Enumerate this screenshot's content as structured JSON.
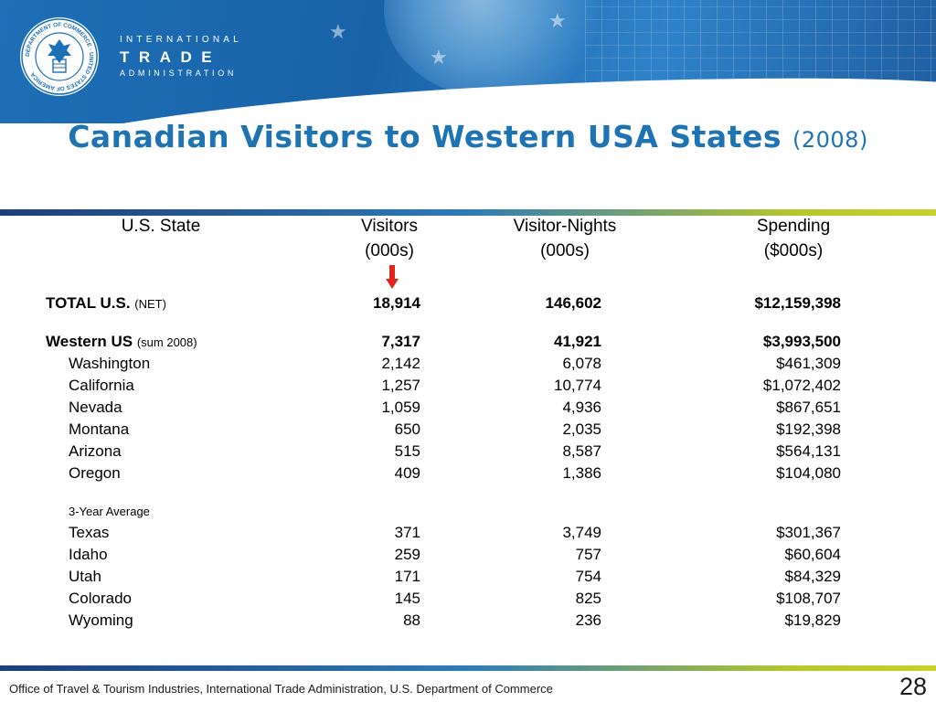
{
  "org": {
    "seal_text": "DEPARTMENT OF COMMERCE · UNITED STATES OF AMERICA",
    "line1": "INTERNATIONAL",
    "line2": "TRADE",
    "line3": "ADMINISTRATION"
  },
  "title": {
    "main": "Canadian Visitors to Western USA States",
    "year": "(2008)"
  },
  "columns": [
    {
      "line1": "U.S. State",
      "line2": ""
    },
    {
      "line1": "Visitors",
      "line2": "(000s)"
    },
    {
      "line1": "Visitor-Nights",
      "line2": "(000s)"
    },
    {
      "line1": "Spending",
      "line2": "($000s)"
    }
  ],
  "rows": {
    "total": {
      "state": "TOTAL U.S.",
      "note": "(NET)",
      "visitors": "18,914",
      "nights": "146,602",
      "spending": "$12,159,398"
    },
    "western": {
      "state": "Western US",
      "note": "(sum 2008)",
      "visitors": "7,317",
      "nights": "41,921",
      "spending": "$3,993,500"
    },
    "sum_states": [
      {
        "state": "Washington",
        "visitors": "2,142",
        "nights": "6,078",
        "spending": "$461,309"
      },
      {
        "state": "California",
        "visitors": "1,257",
        "nights": "10,774",
        "spending": "$1,072,402"
      },
      {
        "state": "Nevada",
        "visitors": "1,059",
        "nights": "4,936",
        "spending": "$867,651"
      },
      {
        "state": "Montana",
        "visitors": "650",
        "nights": "2,035",
        "spending": "$192,398"
      },
      {
        "state": "Arizona",
        "visitors": "515",
        "nights": "8,587",
        "spending": "$564,131"
      },
      {
        "state": "Oregon",
        "visitors": "409",
        "nights": "1,386",
        "spending": "$104,080"
      }
    ],
    "avg_label": "3-Year Average",
    "avg_states": [
      {
        "state": "Texas",
        "visitors": "371",
        "nights": "3,749",
        "spending": "$301,367"
      },
      {
        "state": "Idaho",
        "visitors": "259",
        "nights": "757",
        "spending": "$60,604"
      },
      {
        "state": "Utah",
        "visitors": "171",
        "nights": "754",
        "spending": "$84,329"
      },
      {
        "state": "Colorado",
        "visitors": "145",
        "nights": "825",
        "spending": "$108,707"
      },
      {
        "state": "Wyoming",
        "visitors": "88",
        "nights": "236",
        "spending": "$19,829"
      }
    ]
  },
  "icons": {
    "arrow": "down-arrow-icon",
    "seal": "seal-icon"
  },
  "colors": {
    "title": "#1e74b2",
    "arrow": "#e0261f",
    "banner": "#1d6fb6"
  },
  "footer": {
    "credit": "Office of Travel & Tourism Industries, International Trade Administration, U.S. Department of Commerce",
    "page": "28"
  }
}
